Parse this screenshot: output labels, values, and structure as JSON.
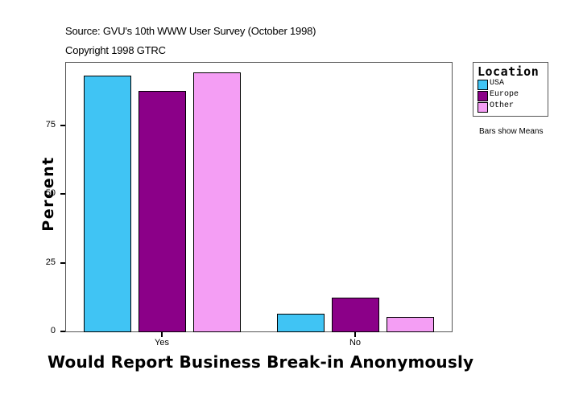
{
  "header": {
    "source": "Source: GVU's 10th WWW User Survey (October 1998)",
    "copyright": "Copyright 1998 GTRC"
  },
  "axes": {
    "y_title": "Percent",
    "x_title": "Would Report Business Break-in Anonymously",
    "y_ticks": [
      "0",
      "25",
      "50",
      "75"
    ],
    "x_ticks": [
      "Yes",
      "No"
    ]
  },
  "legend": {
    "title": "Location",
    "items": [
      {
        "label": "USA",
        "color": "#40c4f4"
      },
      {
        "label": "Europe",
        "color": "#8b0088"
      },
      {
        "label": "Other",
        "color": "#f49ef4"
      }
    ]
  },
  "note": "Bars show Means",
  "chart_data": {
    "type": "bar",
    "title": "",
    "subtitle": "Source: GVU's 10th WWW User Survey (October 1998) / Copyright 1998 GTRC",
    "xlabel": "Would Report Business Break-in Anonymously",
    "ylabel": "Percent",
    "categories": [
      "Yes",
      "No"
    ],
    "series": [
      {
        "name": "USA",
        "color": "#40c4f4",
        "values": [
          93.2,
          6.4
        ]
      },
      {
        "name": "Europe",
        "color": "#8b0088",
        "values": [
          87.6,
          12.3
        ]
      },
      {
        "name": "Other",
        "color": "#f49ef4",
        "values": [
          94.3,
          5.3
        ]
      }
    ],
    "ylim": [
      0,
      98
    ],
    "yticks": [
      0,
      25,
      50,
      75
    ],
    "legend_title": "Location",
    "legend_position": "right",
    "grid": false,
    "annotations": [
      "Bars show Means"
    ]
  }
}
